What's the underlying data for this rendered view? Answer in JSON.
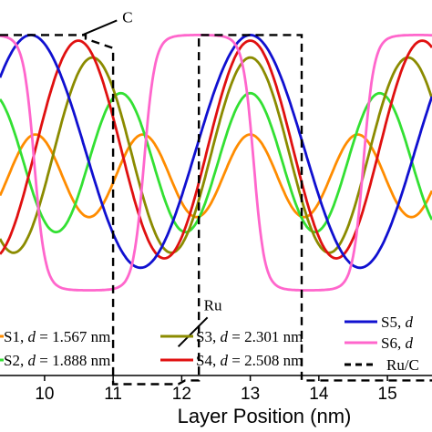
{
  "chart_data": {
    "type": "line",
    "xlabel": "Layer Position (nm)",
    "ylabel": "",
    "xlim": [
      9.35,
      15.65
    ],
    "ylim": [
      -0.78,
      1.07
    ],
    "x_ticks": [
      10,
      11,
      12,
      13,
      14,
      15
    ],
    "grid": false,
    "legend_position": "bottom, inside plot area",
    "annotations": [
      {
        "text": "C",
        "points_to": {
          "x": 10.55,
          "y": 1.0
        }
      },
      {
        "text": "Ru",
        "points_to": {
          "x": 11.95,
          "y": -0.66
        }
      }
    ],
    "series": [
      {
        "name": "S1, d = 1.567 nm",
        "label_prefix": "S1",
        "d_value": "1.567 nm",
        "color": "#FF8C00",
        "style": "solid",
        "period": 1.567,
        "center": 13.0,
        "amplitude": 0.22,
        "offset": 0.25
      },
      {
        "name": "S2, d = 1.888 nm",
        "label_prefix": "S2",
        "d_value": "1.888 nm",
        "color": "#33E033",
        "style": "solid",
        "period": 1.888,
        "center": 13.0,
        "amplitude": 0.37,
        "offset": 0.32
      },
      {
        "name": "S3, d = 2.301 nm",
        "label_prefix": "S3",
        "d_value": "2.301 nm",
        "color": "#8B8B00",
        "style": "solid",
        "period": 2.301,
        "center": 13.0,
        "amplitude": 0.52,
        "offset": 0.36
      },
      {
        "name": "S4, d = 2.508 nm",
        "label_prefix": "S4",
        "d_value": "2.508 nm",
        "color": "#E01010",
        "style": "solid",
        "period": 2.508,
        "center": 13.0,
        "amplitude": 0.58,
        "offset": 0.39
      },
      {
        "name": "S5, d",
        "label_prefix": "S5",
        "d_value": "",
        "color": "#1010D0",
        "style": "solid",
        "period": 3.2,
        "center": 13.0,
        "amplitude": 0.62,
        "offset": 0.38
      },
      {
        "name": "S6, d",
        "label_prefix": "S6",
        "d_value": "",
        "color": "#FF66CC",
        "style": "solid",
        "period": 3.2,
        "center": 12.25,
        "amplitude": 0.68,
        "offset": 0.32,
        "shape": "flat-top"
      },
      {
        "name": "Ru/C",
        "label_prefix": "Ru/C",
        "d_value": "",
        "color": "#000000",
        "style": "dashed",
        "x": [
          9.35,
          10.6,
          10.6,
          11.0,
          11.0,
          11.95,
          12.05,
          12.25,
          12.25,
          13.75,
          13.75,
          14.2,
          15.65
        ],
        "y": [
          1.0,
          1.0,
          0.98,
          0.93,
          -0.86,
          -0.86,
          -0.84,
          -0.84,
          1.0,
          1.0,
          -0.84,
          -0.84,
          -0.84
        ]
      }
    ]
  }
}
